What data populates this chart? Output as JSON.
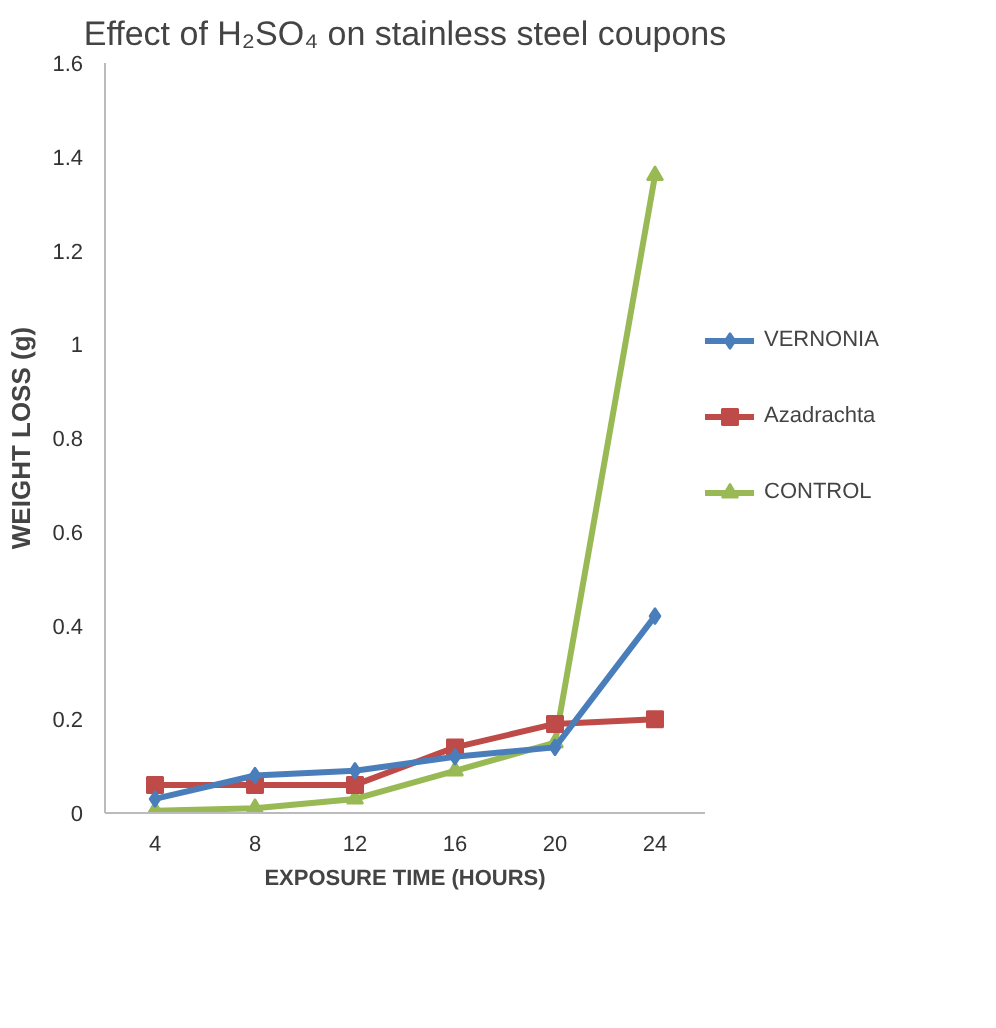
{
  "chart_data": {
    "type": "line",
    "title": "Effect of H₂SO₄ on stainless steel coupons",
    "xlabel": "EXPOSURE TIME (HOURS)",
    "ylabel": "WEIGHT LOSS (g)",
    "categories": [
      "4",
      "8",
      "12",
      "16",
      "20",
      "24"
    ],
    "series": [
      {
        "name": "VERNONIA",
        "color": "#4a7ebb",
        "marker": "diamond",
        "values": [
          0.03,
          0.08,
          0.09,
          0.12,
          0.14,
          0.42
        ]
      },
      {
        "name": "Azadrachta",
        "color": "#be4b48",
        "marker": "square",
        "values": [
          0.06,
          0.06,
          0.06,
          0.14,
          0.19,
          0.2
        ]
      },
      {
        "name": "CONTROL",
        "color": "#98b954",
        "marker": "triangle",
        "values": [
          0.005,
          0.01,
          0.03,
          0.09,
          0.15,
          1.36
        ]
      }
    ],
    "ylim": [
      0,
      1.6
    ],
    "yticks": [
      0,
      {
        "value": 0.2,
        "label": "0.2"
      },
      {
        "value": 0.4,
        "label": "0.4"
      },
      {
        "value": 0.6,
        "label": "0.6"
      },
      {
        "value": 0.8,
        "label": "0.8"
      },
      1,
      {
        "value": 1.2,
        "label": "1.2"
      },
      {
        "value": 1.4,
        "label": "1.4"
      },
      {
        "value": 1.6,
        "label": "1.6"
      }
    ],
    "grid": false,
    "legend": "right",
    "line_style": "solid"
  }
}
